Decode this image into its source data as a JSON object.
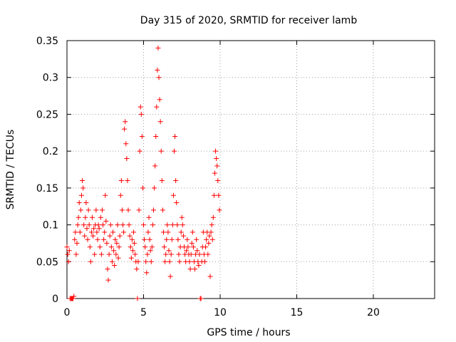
{
  "chart_data": {
    "type": "scatter",
    "title": "Day 315 of 2020, SRMTID for receiver lamb",
    "xlabel": "GPS time / hours",
    "ylabel": "SRMTID / TECUs",
    "xlim": [
      0,
      24
    ],
    "ylim": [
      0,
      0.35
    ],
    "xticks": [
      0,
      5,
      10,
      15,
      20
    ],
    "xtick_labels": [
      "0",
      "5",
      "10",
      "15",
      "20"
    ],
    "yticks": [
      0,
      0.05,
      0.1,
      0.15,
      0.2,
      0.25,
      0.3,
      0.35
    ],
    "ytick_labels": [
      "0",
      "0.05",
      "0.1",
      "0.15",
      "0.2",
      "0.25",
      "0.3",
      "0.35"
    ],
    "grid": true,
    "marker": "+",
    "color": "#ff0000",
    "series": [
      {
        "name": "SRMTID",
        "points": [
          [
            0.0,
            0.07
          ],
          [
            0.05,
            0.06
          ],
          [
            0.1,
            0.05
          ],
          [
            0.15,
            0.065
          ],
          [
            0.2,
            0.0
          ],
          [
            0.25,
            0.0
          ],
          [
            0.3,
            0.0
          ],
          [
            0.35,
            0.0
          ],
          [
            0.4,
            0.0
          ],
          [
            0.45,
            0.003
          ],
          [
            0.5,
            0.08
          ],
          [
            0.55,
            0.09
          ],
          [
            0.6,
            0.06
          ],
          [
            0.65,
            0.075
          ],
          [
            0.7,
            0.1
          ],
          [
            0.75,
            0.11
          ],
          [
            0.8,
            0.13
          ],
          [
            0.85,
            0.09
          ],
          [
            0.9,
            0.12
          ],
          [
            0.95,
            0.14
          ],
          [
            1.0,
            0.16
          ],
          [
            1.05,
            0.15
          ],
          [
            1.1,
            0.1
          ],
          [
            1.15,
            0.085
          ],
          [
            1.2,
            0.11
          ],
          [
            1.25,
            0.13
          ],
          [
            1.3,
            0.095
          ],
          [
            1.35,
            0.08
          ],
          [
            1.4,
            0.12
          ],
          [
            1.45,
            0.1
          ],
          [
            1.5,
            0.07
          ],
          [
            1.55,
            0.05
          ],
          [
            1.6,
            0.09
          ],
          [
            1.65,
            0.11
          ],
          [
            1.7,
            0.085
          ],
          [
            1.75,
            0.095
          ],
          [
            1.8,
            0.06
          ],
          [
            1.85,
            0.1
          ],
          [
            1.9,
            0.12
          ],
          [
            1.95,
            0.09
          ],
          [
            2.0,
            0.08
          ],
          [
            2.05,
            0.1
          ],
          [
            2.1,
            0.095
          ],
          [
            2.15,
            0.07
          ],
          [
            2.2,
            0.11
          ],
          [
            2.25,
            0.06
          ],
          [
            2.3,
            0.12
          ],
          [
            2.35,
            0.1
          ],
          [
            2.4,
            0.08
          ],
          [
            2.45,
            0.09
          ],
          [
            2.5,
            0.14
          ],
          [
            2.55,
            0.105
          ],
          [
            2.6,
            0.075
          ],
          [
            2.65,
            0.04
          ],
          [
            2.7,
            0.025
          ],
          [
            2.75,
            0.06
          ],
          [
            2.8,
            0.085
          ],
          [
            2.85,
            0.1
          ],
          [
            2.9,
            0.07
          ],
          [
            2.95,
            0.05
          ],
          [
            3.0,
            0.09
          ],
          [
            3.05,
            0.065
          ],
          [
            3.1,
            0.045
          ],
          [
            3.15,
            0.08
          ],
          [
            3.2,
            0.06
          ],
          [
            3.25,
            0.075
          ],
          [
            3.3,
            0.1
          ],
          [
            3.35,
            0.055
          ],
          [
            3.4,
            0.07
          ],
          [
            3.45,
            0.085
          ],
          [
            3.5,
            0.14
          ],
          [
            3.55,
            0.16
          ],
          [
            3.6,
            0.12
          ],
          [
            3.65,
            0.1
          ],
          [
            3.7,
            0.09
          ],
          [
            3.75,
            0.23
          ],
          [
            3.8,
            0.24
          ],
          [
            3.85,
            0.21
          ],
          [
            3.9,
            0.19
          ],
          [
            3.95,
            0.16
          ],
          [
            4.0,
            0.12
          ],
          [
            4.05,
            0.1
          ],
          [
            4.1,
            0.085
          ],
          [
            4.15,
            0.07
          ],
          [
            4.2,
            0.055
          ],
          [
            4.25,
            0.08
          ],
          [
            4.3,
            0.065
          ],
          [
            4.35,
            0.09
          ],
          [
            4.4,
            0.075
          ],
          [
            4.45,
            0.06
          ],
          [
            4.5,
            0.05
          ],
          [
            4.55,
            0.04
          ],
          [
            4.6,
            0.0
          ],
          [
            4.65,
            0.05
          ],
          [
            4.7,
            0.12
          ],
          [
            4.75,
            0.2
          ],
          [
            4.8,
            0.26
          ],
          [
            4.85,
            0.25
          ],
          [
            4.9,
            0.22
          ],
          [
            4.95,
            0.15
          ],
          [
            5.0,
            0.1
          ],
          [
            5.05,
            0.08
          ],
          [
            5.1,
            0.07
          ],
          [
            5.15,
            0.05
          ],
          [
            5.2,
            0.035
          ],
          [
            5.25,
            0.06
          ],
          [
            5.3,
            0.09
          ],
          [
            5.35,
            0.11
          ],
          [
            5.4,
            0.08
          ],
          [
            5.45,
            0.065
          ],
          [
            5.5,
            0.05
          ],
          [
            5.55,
            0.07
          ],
          [
            5.6,
            0.1
          ],
          [
            5.65,
            0.12
          ],
          [
            5.7,
            0.15
          ],
          [
            5.75,
            0.18
          ],
          [
            5.8,
            0.22
          ],
          [
            5.85,
            0.26
          ],
          [
            5.9,
            0.31
          ],
          [
            5.95,
            0.34
          ],
          [
            6.0,
            0.3
          ],
          [
            6.05,
            0.27
          ],
          [
            6.1,
            0.24
          ],
          [
            6.15,
            0.2
          ],
          [
            6.2,
            0.16
          ],
          [
            6.25,
            0.12
          ],
          [
            6.3,
            0.09
          ],
          [
            6.35,
            0.07
          ],
          [
            6.4,
            0.05
          ],
          [
            6.45,
            0.06
          ],
          [
            6.5,
            0.08
          ],
          [
            6.55,
            0.1
          ],
          [
            6.6,
            0.09
          ],
          [
            6.65,
            0.065
          ],
          [
            6.7,
            0.05
          ],
          [
            6.75,
            0.03
          ],
          [
            6.8,
            0.06
          ],
          [
            6.85,
            0.08
          ],
          [
            6.9,
            0.1
          ],
          [
            6.95,
            0.14
          ],
          [
            7.0,
            0.2
          ],
          [
            7.05,
            0.22
          ],
          [
            7.1,
            0.16
          ],
          [
            7.15,
            0.13
          ],
          [
            7.2,
            0.1
          ],
          [
            7.25,
            0.08
          ],
          [
            7.3,
            0.06
          ],
          [
            7.35,
            0.05
          ],
          [
            7.4,
            0.07
          ],
          [
            7.45,
            0.09
          ],
          [
            7.5,
            0.11
          ],
          [
            7.55,
            0.1
          ],
          [
            7.6,
            0.085
          ],
          [
            7.65,
            0.07
          ],
          [
            7.7,
            0.06
          ],
          [
            7.75,
            0.05
          ],
          [
            7.8,
            0.065
          ],
          [
            7.85,
            0.08
          ],
          [
            7.9,
            0.07
          ],
          [
            7.95,
            0.06
          ],
          [
            8.0,
            0.05
          ],
          [
            8.05,
            0.04
          ],
          [
            8.1,
            0.06
          ],
          [
            8.15,
            0.075
          ],
          [
            8.2,
            0.09
          ],
          [
            8.25,
            0.07
          ],
          [
            8.3,
            0.05
          ],
          [
            8.35,
            0.04
          ],
          [
            8.4,
            0.06
          ],
          [
            8.45,
            0.08
          ],
          [
            8.5,
            0.065
          ],
          [
            8.55,
            0.05
          ],
          [
            8.6,
            0.045
          ],
          [
            8.65,
            0.06
          ],
          [
            8.7,
            0.0
          ],
          [
            8.75,
            0.0
          ],
          [
            8.8,
            0.05
          ],
          [
            8.85,
            0.07
          ],
          [
            8.9,
            0.09
          ],
          [
            8.95,
            0.06
          ],
          [
            9.0,
            0.05
          ],
          [
            9.05,
            0.07
          ],
          [
            9.1,
            0.08
          ],
          [
            9.15,
            0.09
          ],
          [
            9.2,
            0.06
          ],
          [
            9.25,
            0.075
          ],
          [
            9.3,
            0.085
          ],
          [
            9.35,
            0.03
          ],
          [
            9.4,
            0.09
          ],
          [
            9.45,
            0.1
          ],
          [
            9.5,
            0.08
          ],
          [
            9.55,
            0.11
          ],
          [
            9.6,
            0.14
          ],
          [
            9.65,
            0.17
          ],
          [
            9.7,
            0.2
          ],
          [
            9.75,
            0.19
          ],
          [
            9.8,
            0.18
          ],
          [
            9.85,
            0.16
          ],
          [
            9.9,
            0.14
          ],
          [
            9.95,
            0.12
          ]
        ]
      }
    ]
  }
}
